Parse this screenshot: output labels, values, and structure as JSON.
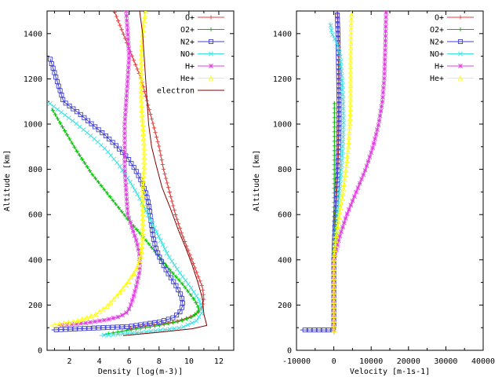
{
  "chart_data": [
    {
      "type": "line",
      "xlabel": "Density  [log(m-3)]",
      "ylabel": "Altitude [km]",
      "xlim": [
        0.5,
        13
      ],
      "ylim": [
        0,
        1500
      ],
      "xticks": [
        2,
        4,
        6,
        8,
        10,
        12
      ],
      "yticks": [
        0,
        200,
        400,
        600,
        800,
        1000,
        1200,
        1400
      ],
      "grid": false,
      "legend": "top-right",
      "series": [
        {
          "name": "O+",
          "color": "#e04040",
          "marker": "plus",
          "x": [
            5.8,
            6.3,
            7.0,
            8.0,
            9.0,
            10.0,
            10.6,
            10.9,
            11.0,
            10.9,
            10.6,
            10.2,
            9.9,
            9.5,
            9.1,
            8.7,
            8.3,
            8.0,
            7.6,
            7.2,
            6.8,
            6.2,
            5.6,
            5.0
          ],
          "y": [
            90,
            100,
            108,
            115,
            125,
            145,
            165,
            190,
            230,
            280,
            330,
            400,
            450,
            520,
            600,
            700,
            800,
            900,
            1000,
            1100,
            1200,
            1300,
            1400,
            1500
          ]
        },
        {
          "name": "O2+",
          "color": "#00c000",
          "marker": "cross",
          "x": [
            4.3,
            6.0,
            8.0,
            9.5,
            10.3,
            10.7,
            10.4,
            9.6,
            8.4,
            7.2,
            5.9,
            4.7,
            3.5,
            2.5,
            1.6,
            0.8
          ],
          "y": [
            70,
            90,
            110,
            130,
            150,
            180,
            220,
            290,
            380,
            480,
            580,
            680,
            780,
            880,
            980,
            1070
          ]
        },
        {
          "name": "N2+",
          "color": "#4040d0",
          "marker": "square",
          "x": [
            0.8,
            6.0,
            8.0,
            9.0,
            9.4,
            9.6,
            9.5,
            9.1,
            8.6,
            8.1,
            7.8,
            7.6,
            7.5,
            7.4,
            7.3,
            7.1,
            6.8,
            6.4,
            5.9,
            5.2,
            4.4,
            3.5,
            2.6,
            1.6,
            0.7
          ],
          "y": [
            90,
            105,
            125,
            145,
            170,
            200,
            240,
            290,
            340,
            400,
            450,
            500,
            550,
            600,
            650,
            700,
            750,
            800,
            850,
            900,
            950,
            1000,
            1050,
            1100,
            1290
          ]
        },
        {
          "name": "NO+",
          "color": "#40e0e0",
          "marker": "x",
          "x": [
            4.0,
            7.0,
            9.5,
            10.5,
            10.9,
            10.7,
            10.1,
            9.3,
            8.6,
            8.0,
            7.4,
            6.8,
            6.1,
            5.3,
            4.4,
            3.4,
            2.3,
            1.3,
            0.5
          ],
          "y": [
            65,
            80,
            100,
            130,
            170,
            220,
            280,
            350,
            420,
            500,
            580,
            660,
            740,
            820,
            890,
            950,
            1010,
            1060,
            1100
          ]
        },
        {
          "name": "H+",
          "color": "#e040e0",
          "marker": "star",
          "x": [
            1.2,
            3.0,
            4.5,
            5.4,
            5.9,
            6.1,
            6.3,
            6.5,
            6.7,
            6.7,
            6.5,
            6.2,
            5.9,
            5.8,
            5.7,
            5.7,
            5.7,
            5.8,
            5.9,
            6.0,
            5.9,
            5.8
          ],
          "y": [
            110,
            120,
            135,
            150,
            170,
            200,
            240,
            290,
            350,
            420,
            480,
            540,
            600,
            700,
            800,
            900,
            1000,
            1100,
            1200,
            1300,
            1400,
            1500
          ]
        },
        {
          "name": "He+",
          "color": "#ffff00",
          "marker": "triangle",
          "x": [
            0.7,
            2.5,
            3.8,
            4.6,
            5.3,
            5.9,
            6.5,
            6.8,
            6.9,
            6.9,
            6.9,
            7.0,
            7.0,
            6.9,
            6.8,
            6.8,
            6.8,
            6.9,
            7.0,
            7.1
          ],
          "y": [
            110,
            130,
            160,
            200,
            250,
            300,
            360,
            420,
            500,
            600,
            700,
            800,
            900,
            1000,
            1100,
            1200,
            1300,
            1400,
            1450,
            1500
          ]
        },
        {
          "name": "electron",
          "color": "#800000",
          "marker": "none",
          "x": [
            5.6,
            8.0,
            10.2,
            11.2,
            11.0,
            10.9,
            10.6,
            10.2,
            9.8,
            9.3,
            8.8,
            8.2,
            7.8,
            7.5,
            7.3,
            7.2,
            7.1,
            7.0,
            6.9,
            6.8,
            6.7
          ],
          "y": [
            65,
            80,
            95,
            110,
            160,
            230,
            300,
            380,
            450,
            530,
            620,
            720,
            820,
            900,
            1000,
            1100,
            1200,
            1300,
            1400,
            1450,
            1500
          ]
        }
      ]
    },
    {
      "type": "line",
      "xlabel": "Velocity  [m-1s-1]",
      "ylabel": "Altitude [km]",
      "xlim": [
        -10000,
        40000
      ],
      "ylim": [
        0,
        1500
      ],
      "xticks": [
        -10000,
        0,
        10000,
        20000,
        30000,
        40000
      ],
      "yticks": [
        0,
        200,
        400,
        600,
        800,
        1000,
        1200,
        1400
      ],
      "grid": false,
      "legend": "top-right",
      "series": [
        {
          "name": "O+",
          "color": "#e04040",
          "marker": "plus",
          "x": [
            0,
            0,
            100,
            300,
            600,
            900,
            1100,
            1200,
            1300,
            1400,
            1400,
            1300,
            1200,
            1100,
            1000
          ],
          "y": [
            70,
            400,
            500,
            600,
            700,
            800,
            900,
            1000,
            1100,
            1200,
            1300,
            1350,
            1400,
            1450,
            1500
          ]
        },
        {
          "name": "O2+",
          "color": "#00c000",
          "marker": "cross",
          "x": [
            0,
            0,
            50,
            100,
            150,
            150
          ],
          "y": [
            70,
            400,
            500,
            700,
            900,
            1100
          ]
        },
        {
          "name": "N2+",
          "color": "#4040d0",
          "marker": "square",
          "x": [
            -9000,
            0,
            0,
            200,
            500,
            800,
            1100,
            1300,
            1400,
            1400,
            1300,
            1200,
            1100,
            1000,
            900
          ],
          "y": [
            90,
            90,
            400,
            500,
            600,
            700,
            800,
            900,
            1000,
            1100,
            1200,
            1300,
            1400,
            1450,
            1500
          ]
        },
        {
          "name": "NO+",
          "color": "#40e0e0",
          "marker": "x",
          "x": [
            0,
            0,
            500,
            1000,
            1500,
            2000,
            2400,
            2600,
            2500,
            2200,
            1700,
            1000,
            -500,
            -1000
          ],
          "y": [
            70,
            400,
            500,
            600,
            700,
            800,
            900,
            1000,
            1100,
            1200,
            1300,
            1350,
            1400,
            1450
          ]
        },
        {
          "name": "H+",
          "color": "#e040e0",
          "marker": "star",
          "x": [
            0,
            0,
            1500,
            3500,
            6000,
            8500,
            10500,
            12000,
            13000,
            13500,
            13800,
            14000
          ],
          "y": [
            70,
            400,
            500,
            600,
            700,
            800,
            900,
            1000,
            1100,
            1200,
            1350,
            1500
          ]
        },
        {
          "name": "He+",
          "color": "#ffff00",
          "marker": "triangle",
          "x": [
            0,
            0,
            600,
            1500,
            2500,
            3300,
            3900,
            4300,
            4500,
            4500,
            4500,
            4600,
            4700
          ],
          "y": [
            70,
            400,
            500,
            600,
            700,
            800,
            900,
            1000,
            1100,
            1200,
            1300,
            1400,
            1500
          ]
        }
      ]
    }
  ]
}
